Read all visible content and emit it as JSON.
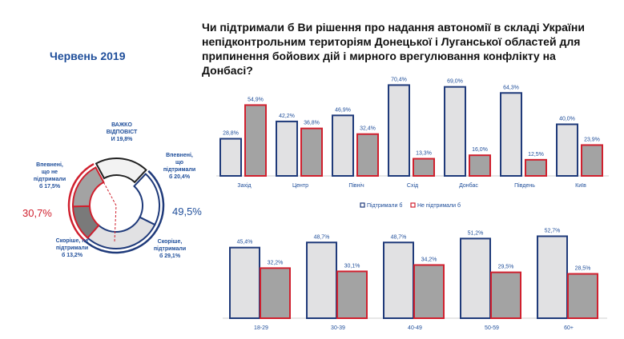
{
  "period": "Червень  2019",
  "title": "Чи підтримали б Ви рішення про надання автономії в складі України непідконтрольним територіям Донецької і Луганської областей для припинення бойових дій і мирного врегулювання конфлікту на Донбасі?",
  "colors": {
    "support_fill": "#e1e1e3",
    "support_stroke": "#1f3a7a",
    "oppose_fill": "#a3a3a3",
    "oppose_stroke": "#d0202e",
    "accent_blue": "#1f4e9a",
    "accent_red": "#d0202e"
  },
  "chart_data": [
    {
      "type": "pie",
      "subtype": "donut",
      "slices": [
        {
          "label": "Впевнені, що підтримали б 20,4%",
          "value": 20.4,
          "fill": "#ffffff",
          "stroke": "#1f3a7a"
        },
        {
          "label": "Скоріше, підтримали б 29,1%",
          "value": 29.1,
          "fill": "#e1e1e3",
          "stroke": "#1f3a7a"
        },
        {
          "label": "Скоріше, не підтримали б 13,2%",
          "value": 13.2,
          "fill": "#7a7a7a",
          "stroke": "#d0202e"
        },
        {
          "label": "Впевнені, що не підтримали б  17,5%",
          "value": 17.5,
          "fill": "#a3a3a3",
          "stroke": "#d0202e"
        },
        {
          "label": "ВАЖКО ВІДПОВІСТИ 19,8%",
          "value": 19.8,
          "fill": "#f2f2f2",
          "stroke": "#222222"
        }
      ],
      "group_totals": {
        "support": "49,5%",
        "oppose": "30,7%"
      }
    },
    {
      "type": "bar",
      "categories": [
        "Захід",
        "Центр",
        "Північ",
        "Схід",
        "Донбас",
        "Південь",
        "Київ"
      ],
      "series": [
        {
          "name": "Підтримали б",
          "values": [
            28.8,
            42.2,
            46.9,
            70.4,
            69.0,
            64.3,
            40.0
          ],
          "labels": [
            "28,8%",
            "42,2%",
            "46,9%",
            "70,4%",
            "69,0%",
            "64,3%",
            "40,0%"
          ]
        },
        {
          "name": "Не підтримали б",
          "values": [
            54.9,
            36.8,
            32.4,
            13.3,
            16.0,
            12.5,
            23.9
          ],
          "labels": [
            "54,9%",
            "36,8%",
            "32,4%",
            "13,3%",
            "16,0%",
            "12,5%",
            "23,9%"
          ]
        }
      ],
      "ylim": [
        0,
        75
      ],
      "legend_position": "bottom"
    },
    {
      "type": "bar",
      "categories": [
        "18-29",
        "30-39",
        "40-49",
        "50-59",
        "60+"
      ],
      "series": [
        {
          "name": "Підтримали б",
          "values": [
            45.4,
            48.7,
            48.7,
            51.2,
            52.7
          ],
          "labels": [
            "45,4%",
            "48,7%",
            "48,7%",
            "51,2%",
            "52,7%"
          ]
        },
        {
          "name": "Не підтримали б",
          "values": [
            32.2,
            30.1,
            34.2,
            29.5,
            28.5
          ],
          "labels": [
            "32,2%",
            "30,1%",
            "34,2%",
            "29,5%",
            "28,5%"
          ]
        }
      ],
      "ylim": [
        0,
        55
      ]
    }
  ]
}
